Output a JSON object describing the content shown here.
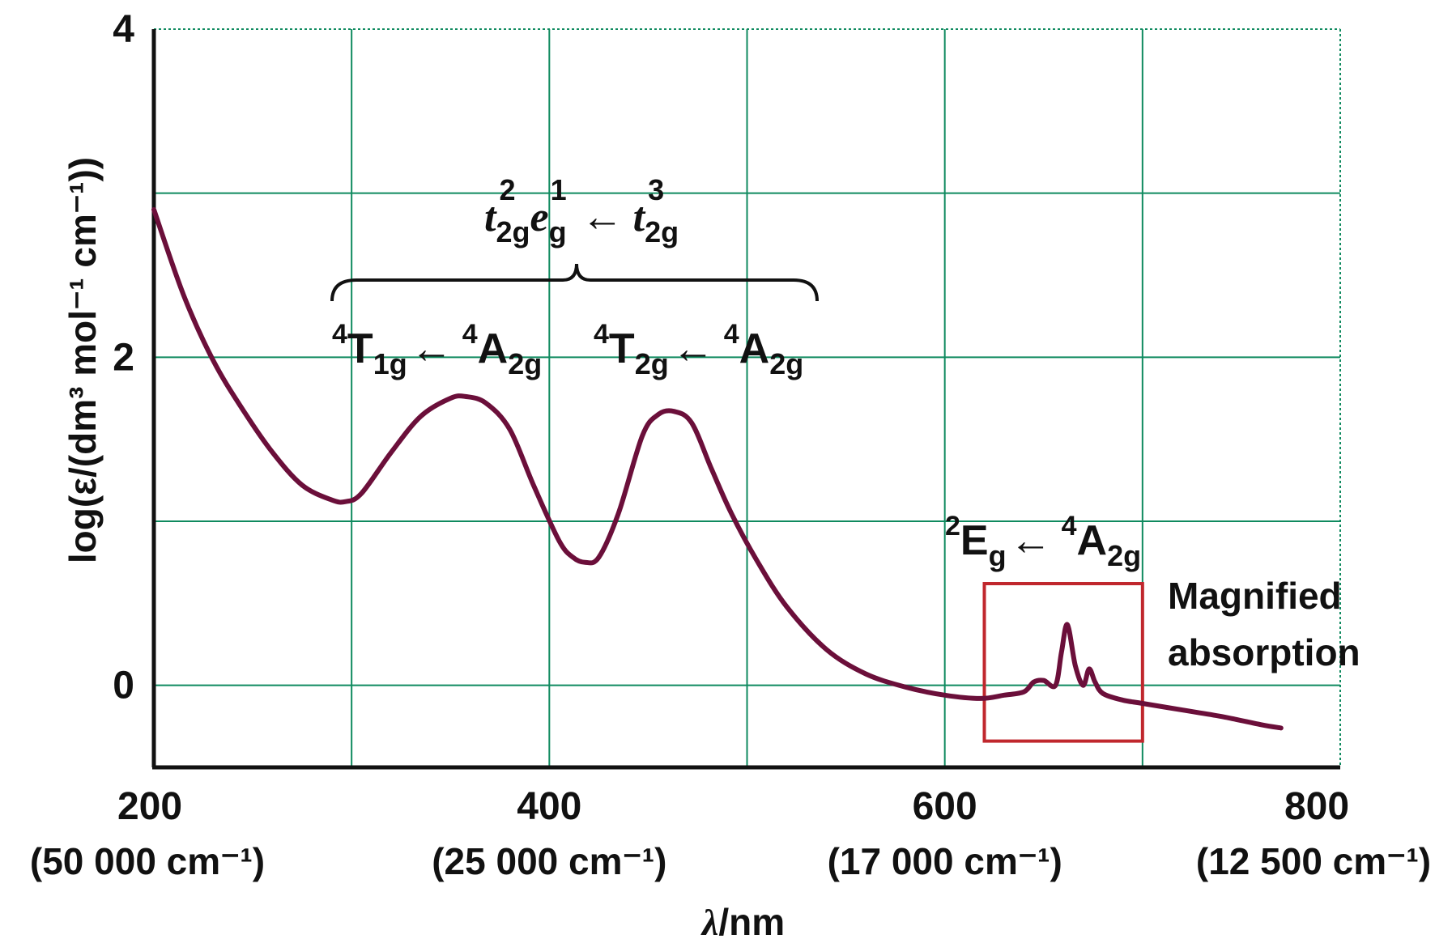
{
  "chart_data": {
    "type": "line",
    "title": "",
    "xlabel_var": "λ",
    "xlabel_unit": "/nm",
    "ylabel_text": "log(ε/(dm³ mol⁻¹ cm⁻¹))",
    "xlim": [
      200,
      800
    ],
    "ylim": [
      -0.5,
      4
    ],
    "x_ticks": [
      {
        "value": 200,
        "label": "200",
        "sub": "(50 000 cm⁻¹)"
      },
      {
        "value": 400,
        "label": "400",
        "sub": "(25 000 cm⁻¹)"
      },
      {
        "value": 600,
        "label": "600",
        "sub": "(17 000 cm⁻¹)"
      },
      {
        "value": 800,
        "label": "800",
        "sub": "(12 500 cm⁻¹)"
      }
    ],
    "y_ticks": [
      {
        "value": 0,
        "label": "0"
      },
      {
        "value": 2,
        "label": "2"
      },
      {
        "value": 4,
        "label": "4"
      }
    ],
    "grid": true,
    "x_grid": [
      200,
      300,
      400,
      500,
      600,
      700,
      800
    ],
    "y_grid": [
      0,
      1,
      2,
      3,
      4
    ],
    "series": [
      {
        "color": "#6b0f3a",
        "x": [
          200,
          215,
          230,
          245,
          260,
          275,
          290,
          297,
          305,
          320,
          335,
          350,
          358,
          368,
          380,
          392,
          405,
          412,
          418,
          425,
          435,
          447,
          455,
          463,
          472,
          482,
          492,
          505,
          520,
          540,
          560,
          580,
          600,
          618,
          630,
          640,
          645,
          650,
          656,
          659,
          662,
          666,
          670,
          673,
          676,
          680,
          690,
          700,
          720,
          740,
          760,
          770
        ],
        "y": [
          2.9,
          2.38,
          1.98,
          1.68,
          1.42,
          1.22,
          1.13,
          1.12,
          1.17,
          1.42,
          1.64,
          1.75,
          1.76,
          1.72,
          1.56,
          1.22,
          0.88,
          0.78,
          0.75,
          0.78,
          1.05,
          1.52,
          1.65,
          1.67,
          1.6,
          1.32,
          1.05,
          0.76,
          0.48,
          0.22,
          0.07,
          -0.01,
          -0.06,
          -0.08,
          -0.06,
          -0.04,
          0.02,
          0.03,
          0.0,
          0.2,
          0.37,
          0.12,
          0.0,
          0.1,
          0.02,
          -0.05,
          -0.09,
          -0.11,
          -0.15,
          -0.19,
          -0.24,
          -0.26
        ]
      }
    ],
    "annotations": {
      "config_t1": "t",
      "config_t1_sub": "2g",
      "config_t1_sup": "2",
      "config_e": "e",
      "config_e_sub": "g",
      "config_e_sup": "1",
      "config_arrow": "←",
      "config_t2": "t",
      "config_t2_sub": "2g",
      "config_t2_sup": "3",
      "band1_sup": "4",
      "band1_main": "T",
      "band1_sub": "1g",
      "band1_arrow": "←",
      "band1_gs_sup": "4",
      "band1_gs_main": "A",
      "band1_gs_sub": "2g",
      "band2_sup": "4",
      "band2_main": "T",
      "band2_sub": "2g",
      "band2_arrow": "←",
      "band2_gs_sup": "4",
      "band2_gs_main": "A",
      "band2_gs_sub": "2g",
      "band3_sup": "2",
      "band3_main": "E",
      "band3_sub": "g",
      "band3_arrow": "←",
      "band3_gs_sup": "4",
      "band3_gs_main": "A",
      "band3_gs_sub": "2g",
      "magnified_line1": "Magnified",
      "magnified_line2": "absorption"
    },
    "magnify_box": {
      "x": [
        620,
        700
      ],
      "y": [
        -0.34,
        0.62
      ],
      "color": "#c0272d"
    }
  }
}
